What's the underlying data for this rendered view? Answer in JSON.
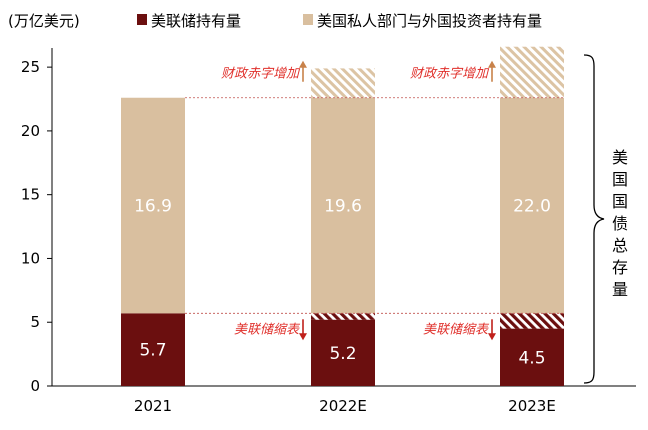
{
  "chart_data": {
    "type": "bar",
    "unit_label": "(万亿美元)",
    "categories": [
      "2021",
      "2022E",
      "2023E"
    ],
    "series": [
      {
        "name": "美联储持有量",
        "values": [
          5.7,
          5.2,
          4.5
        ],
        "color": "#6b0f0f"
      },
      {
        "name": "美国私人部门与外国投资者持有量",
        "values": [
          16.9,
          19.6,
          22.0
        ],
        "color": "#d9bf9f"
      }
    ],
    "hatched_segments": {
      "fed_reduction": [
        null,
        0.5,
        1.2
      ],
      "deficit_increase": [
        null,
        2.3,
        4.0
      ]
    },
    "annotations": {
      "deficit": "财政赤字增加",
      "fed_shrink": "美联储缩表",
      "total_brace": "美国国债总存量"
    },
    "y_ticks": [
      0,
      5,
      10,
      15,
      20,
      25
    ],
    "ylim": [
      0,
      26.5
    ],
    "colors": {
      "fed": "#6b0f0f",
      "private": "#d9bf9f",
      "annotation_text": "#e0302b",
      "deficit_arrow": "#c8824a",
      "fed_arrow": "#c0201a"
    }
  }
}
